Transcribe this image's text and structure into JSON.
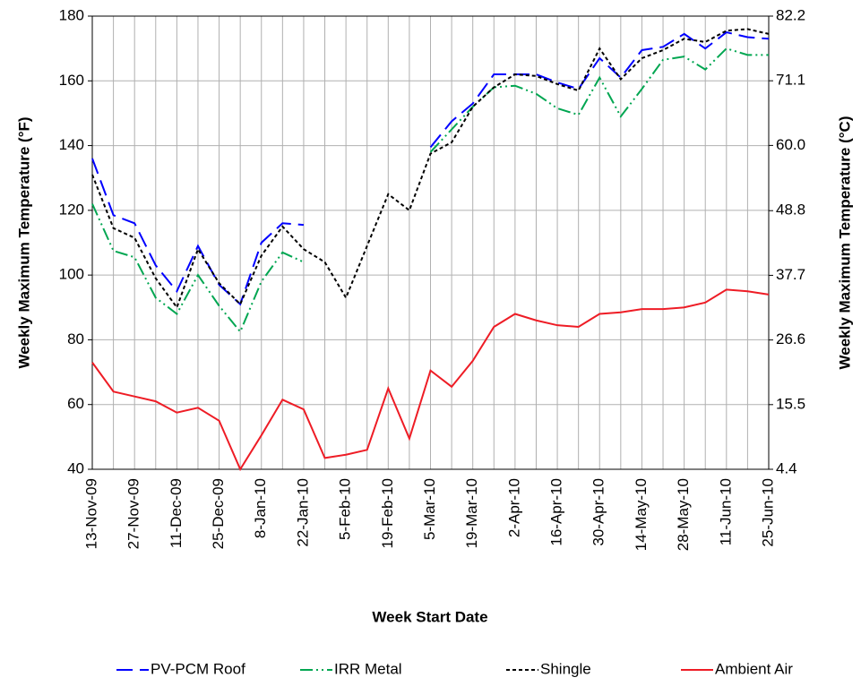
{
  "chart_data": {
    "type": "line",
    "x_label": "Week Start Date",
    "y_label": "Weekly Maximum Temperature (°F)",
    "y2_label": "Weekly Maximum Temperature (°C)",
    "categories": [
      "13-Nov-09",
      null,
      "27-Nov-09",
      null,
      "11-Dec-09",
      null,
      "25-Dec-09",
      null,
      "8-Jan-10",
      null,
      "22-Jan-10",
      null,
      "5-Feb-10",
      null,
      "19-Feb-10",
      null,
      "5-Mar-10",
      null,
      "19-Mar-10",
      null,
      "2-Apr-10",
      null,
      "16-Apr-10",
      null,
      "30-Apr-10",
      null,
      "14-May-10",
      null,
      "28-May-10",
      null,
      "11-Jun-10",
      null,
      "25-Jun-10"
    ],
    "ylim": [
      40,
      180
    ],
    "yticks": [
      40,
      60,
      80,
      100,
      120,
      140,
      160,
      180
    ],
    "y2lim": [
      4.4,
      82.2
    ],
    "y2ticks": [
      4.4,
      15.5,
      26.6,
      37.7,
      48.8,
      {
        "value": 60,
        "label": "60.0"
      },
      71.1,
      82.2
    ],
    "grid": true,
    "legend": "bottom",
    "series": [
      {
        "name": "PV-PCM Roof",
        "color": "#0000ff",
        "dash": "18 8",
        "values": [
          136,
          118.5,
          116,
          103,
          95,
          109,
          97,
          91,
          110,
          116,
          115.5,
          null,
          null,
          null,
          null,
          null,
          139.5,
          147.5,
          153,
          162,
          162,
          162,
          159.5,
          157.5,
          167,
          161,
          169.5,
          170.5,
          174.5,
          170,
          175,
          173.5,
          173
        ]
      },
      {
        "name": "IRR Metal",
        "color": "#00a651",
        "dash": "14 4 2 4 2 4",
        "values": [
          122,
          107.5,
          105.5,
          93,
          88,
          100,
          90.5,
          82.5,
          98,
          107,
          104,
          null,
          null,
          null,
          null,
          null,
          138,
          145,
          152,
          158,
          158.5,
          156,
          151.5,
          149.5,
          161,
          149,
          157.5,
          166.5,
          167.5,
          163.5,
          170,
          168,
          168
        ]
      },
      {
        "name": "Shingle",
        "color": "#000000",
        "dash": "4 3",
        "values": [
          131,
          114.5,
          111.5,
          99,
          90,
          108,
          97.5,
          91,
          106,
          115,
          108,
          104,
          93,
          109,
          125,
          120,
          137.5,
          141,
          152,
          158,
          162,
          161.5,
          159,
          157,
          170,
          160.5,
          167,
          169.5,
          173,
          172,
          175.5,
          176,
          174.5
        ]
      },
      {
        "name": "Ambient Air",
        "color": "#ee1c25",
        "dash": "",
        "values": [
          73,
          64,
          62.5,
          61,
          57.5,
          59,
          55,
          40,
          50.5,
          61.5,
          58.5,
          43.5,
          44.5,
          46,
          65,
          49.5,
          70.5,
          65.5,
          73.5,
          84,
          88,
          86,
          84.5,
          84,
          88,
          88.5,
          89.5,
          89.5,
          90,
          91.5,
          95.5,
          95,
          94
        ]
      }
    ]
  }
}
